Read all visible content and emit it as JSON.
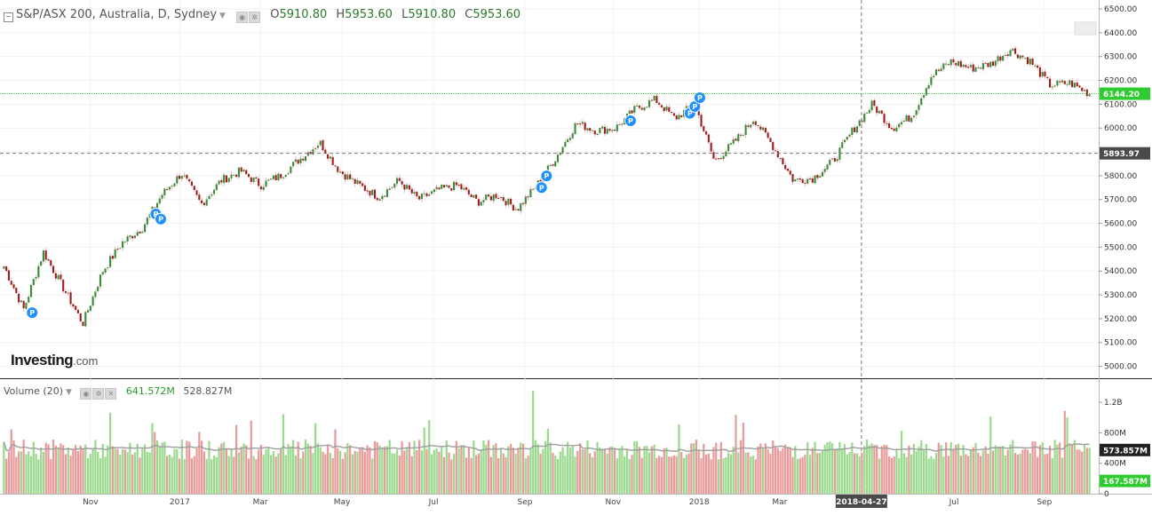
{
  "header": {
    "collapse_icon": "minus-square-icon",
    "title": "S&P/ASX 200, Australia, D, Sydney",
    "ohlc": [
      {
        "label": "O",
        "value": "5910.80"
      },
      {
        "label": "H",
        "value": "5953.60"
      },
      {
        "label": "L",
        "value": "5910.80"
      },
      {
        "label": "C",
        "value": "5953.60"
      }
    ]
  },
  "volume_header": {
    "title": "Volume (20)",
    "value1": "641.572M",
    "value2": "528.827M"
  },
  "logo": {
    "main": "Investing",
    "suffix": ".com"
  },
  "colors": {
    "up": "#3a8a3a",
    "down": "#a01c1c",
    "vol_up": "#9bd98f",
    "vol_down": "#e99a9a",
    "current_line": "#40d040",
    "ma": "#9e9e9e"
  },
  "chart_data": [
    {
      "type": "candlestick",
      "title": "S&P/ASX 200, Australia, D, Sydney",
      "ylim": [
        4950,
        6530
      ],
      "y_ticks": [
        "6500.00",
        "6400.00",
        "6300.00",
        "6200.00",
        "6100.00",
        "6000.00",
        "5900.00",
        "5800.00",
        "5700.00",
        "5600.00",
        "5500.00",
        "5400.00",
        "5300.00",
        "5200.00",
        "5100.00",
        "5000.00"
      ],
      "x_ticks": [
        "Nov",
        "2017",
        "Mar",
        "May",
        "Jul",
        "Sep",
        "Nov",
        "2018",
        "Mar",
        "Jul",
        "Sep"
      ],
      "crosshair": {
        "x_label": "2018-04-27",
        "y_label": "5893.97",
        "y_value": 5893.97
      },
      "last_price": {
        "label": "6144.20",
        "value": 6144.2
      },
      "series": [
        {
          "name": "",
          "points": [
            [
              "2016-09",
              5420
            ],
            [
              "2016-10",
              5240
            ],
            [
              "2016-10-20",
              5480
            ],
            [
              "2016-11",
              5330
            ],
            [
              "2016-11-09",
              5180
            ],
            [
              "2016-11-25",
              5400
            ],
            [
              "2016-12",
              5520
            ],
            [
              "2016-12-15",
              5580
            ],
            [
              "2017-01",
              5720
            ],
            [
              "2017-01-20",
              5810
            ],
            [
              "2017-02",
              5680
            ],
            [
              "2017-02-15",
              5780
            ],
            [
              "2017-03",
              5820
            ],
            [
              "2017-03-20",
              5760
            ],
            [
              "2017-04",
              5800
            ],
            [
              "2017-04-15",
              5870
            ],
            [
              "2017-05",
              5940
            ],
            [
              "2017-05-10",
              5820
            ],
            [
              "2017-05-25",
              5760
            ],
            [
              "2017-06",
              5710
            ],
            [
              "2017-06-15",
              5780
            ],
            [
              "2017-07",
              5700
            ],
            [
              "2017-07-15",
              5740
            ],
            [
              "2017-08",
              5760
            ],
            [
              "2017-08-20",
              5690
            ],
            [
              "2017-09",
              5720
            ],
            [
              "2017-09-20",
              5660
            ],
            [
              "2017-10",
              5760
            ],
            [
              "2017-10-15",
              5880
            ],
            [
              "2017-11",
              6020
            ],
            [
              "2017-11-15",
              5990
            ],
            [
              "2017-12",
              6000
            ],
            [
              "2017-12-15",
              6080
            ],
            [
              "2018-01",
              6120
            ],
            [
              "2018-01-20",
              6040
            ],
            [
              "2018-02",
              6100
            ],
            [
              "2018-02-10",
              5860
            ],
            [
              "2018-02-25",
              5940
            ],
            [
              "2018-03",
              6040
            ],
            [
              "2018-03-15",
              5920
            ],
            [
              "2018-03-25",
              5780
            ],
            [
              "2018-04",
              5790
            ],
            [
              "2018-04-15",
              5860
            ],
            [
              "2018-04-27",
              5990
            ],
            [
              "2018-05",
              6100
            ],
            [
              "2018-05-20",
              6000
            ],
            [
              "2018-06",
              6050
            ],
            [
              "2018-06-15",
              6220
            ],
            [
              "2018-07",
              6280
            ],
            [
              "2018-07-15",
              6250
            ],
            [
              "2018-08",
              6270
            ],
            [
              "2018-08-20",
              6330
            ],
            [
              "2018-08-28",
              6280
            ],
            [
              "2018-09",
              6180
            ],
            [
              "2018-09-20",
              6190
            ],
            [
              "2018-10",
              6144
            ]
          ]
        }
      ],
      "pivot_markers": [
        {
          "label": "P"
        },
        {
          "label": "P"
        },
        {
          "label": "P"
        },
        {
          "label": "P"
        },
        {
          "label": "P"
        },
        {
          "label": "P"
        },
        {
          "label": "P"
        },
        {
          "label": "P"
        },
        {
          "label": "P"
        }
      ]
    },
    {
      "type": "bar",
      "title": "Volume (20)",
      "ylim": [
        0,
        1400
      ],
      "unit": "M",
      "y_ticks": [
        "1.2B",
        "800M",
        "400M",
        "0"
      ],
      "last_values": [
        {
          "label": "573.857M",
          "value": 573.857
        },
        {
          "label": "167.587M",
          "value": 167.587
        }
      ],
      "values_summary": {
        "typical_min": 450,
        "typical_max": 800,
        "spike_max": 1350
      },
      "ma_series_name": "Volume (20)"
    }
  ]
}
